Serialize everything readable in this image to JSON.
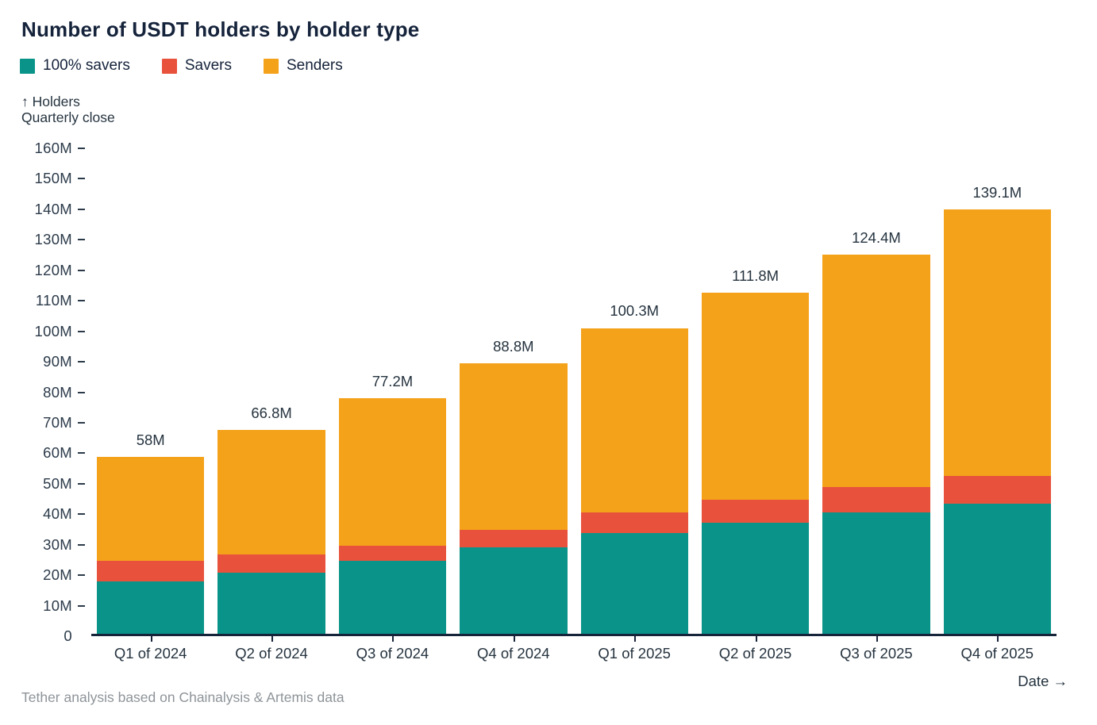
{
  "title": "Number of USDT holders by holder type",
  "axis_note": {
    "line1": "↑ Holders",
    "line2": "Quarterly close"
  },
  "x_axis_label": "Date →",
  "footer": "Tether analysis based on Chainalysis & Artemis data",
  "colors": {
    "savers100": "#0A9489",
    "savers": "#E8523D",
    "senders": "#F5A21B",
    "axis": "#16243A",
    "text_dark": "#15233B",
    "text_axis": "#2B3A49",
    "footer_gray": "#8E9499"
  },
  "chart_data": {
    "type": "bar",
    "stacked": true,
    "title": "Number of USDT holders by holder type",
    "ylabel": "Holders",
    "xlabel": "Date",
    "ylim": [
      0,
      160
    ],
    "ytick_step": 10,
    "ytick_labels": [
      "0",
      "10M",
      "20M",
      "30M",
      "40M",
      "50M",
      "60M",
      "70M",
      "80M",
      "90M",
      "100M",
      "110M",
      "120M",
      "130M",
      "140M",
      "150M",
      "160M"
    ],
    "grid": false,
    "legend_position": "top-left",
    "categories": [
      "Q1 of 2024",
      "Q2 of 2024",
      "Q3 of 2024",
      "Q4 of 2024",
      "Q1 of 2025",
      "Q2 of 2025",
      "Q3 of 2025",
      "Q4 of 2025"
    ],
    "series": [
      {
        "name": "100% savers",
        "color": "#0A9489",
        "values": [
          17.3,
          20.1,
          24.0,
          28.3,
          33.1,
          36.5,
          39.9,
          42.8
        ]
      },
      {
        "name": "Savers",
        "color": "#E8523D",
        "values": [
          6.7,
          5.9,
          5.0,
          5.8,
          6.8,
          7.5,
          8.2,
          9.0
        ]
      },
      {
        "name": "Senders",
        "color": "#F5A21B",
        "values": [
          34.0,
          40.8,
          48.2,
          54.7,
          60.4,
          67.8,
          76.3,
          87.3
        ]
      }
    ],
    "totals": [
      58,
      66.8,
      77.2,
      88.8,
      100.3,
      111.8,
      124.4,
      139.1
    ],
    "total_labels": [
      "58M",
      "66.8M",
      "77.2M",
      "88.8M",
      "100.3M",
      "111.8M",
      "124.4M",
      "139.1M"
    ]
  }
}
